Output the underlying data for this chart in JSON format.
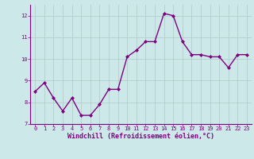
{
  "x": [
    0,
    1,
    2,
    3,
    4,
    5,
    6,
    7,
    8,
    9,
    10,
    11,
    12,
    13,
    14,
    15,
    16,
    17,
    18,
    19,
    20,
    21,
    22,
    23
  ],
  "y": [
    8.5,
    8.9,
    8.2,
    7.6,
    8.2,
    7.4,
    7.4,
    7.9,
    8.6,
    8.6,
    10.1,
    10.4,
    10.8,
    10.8,
    12.1,
    12.0,
    10.8,
    10.2,
    10.2,
    10.1,
    10.1,
    9.6,
    10.2,
    10.2
  ],
  "line_color": "#800080",
  "marker": "D",
  "marker_size": 2.0,
  "line_width": 1.0,
  "bg_color": "#cce8e8",
  "grid_color": "#b0c8c8",
  "xlabel": "Windchill (Refroidissement éolien,°C)",
  "ylim": [
    7,
    12.5
  ],
  "xlim": [
    -0.5,
    23.5
  ],
  "yticks": [
    7,
    8,
    9,
    10,
    11,
    12
  ],
  "xticks": [
    0,
    1,
    2,
    3,
    4,
    5,
    6,
    7,
    8,
    9,
    10,
    11,
    12,
    13,
    14,
    15,
    16,
    17,
    18,
    19,
    20,
    21,
    22,
    23
  ],
  "tick_color": "#800080",
  "label_color": "#800080",
  "tick_fontsize": 5.0,
  "xlabel_fontsize": 6.0,
  "spine_color": "#800080"
}
